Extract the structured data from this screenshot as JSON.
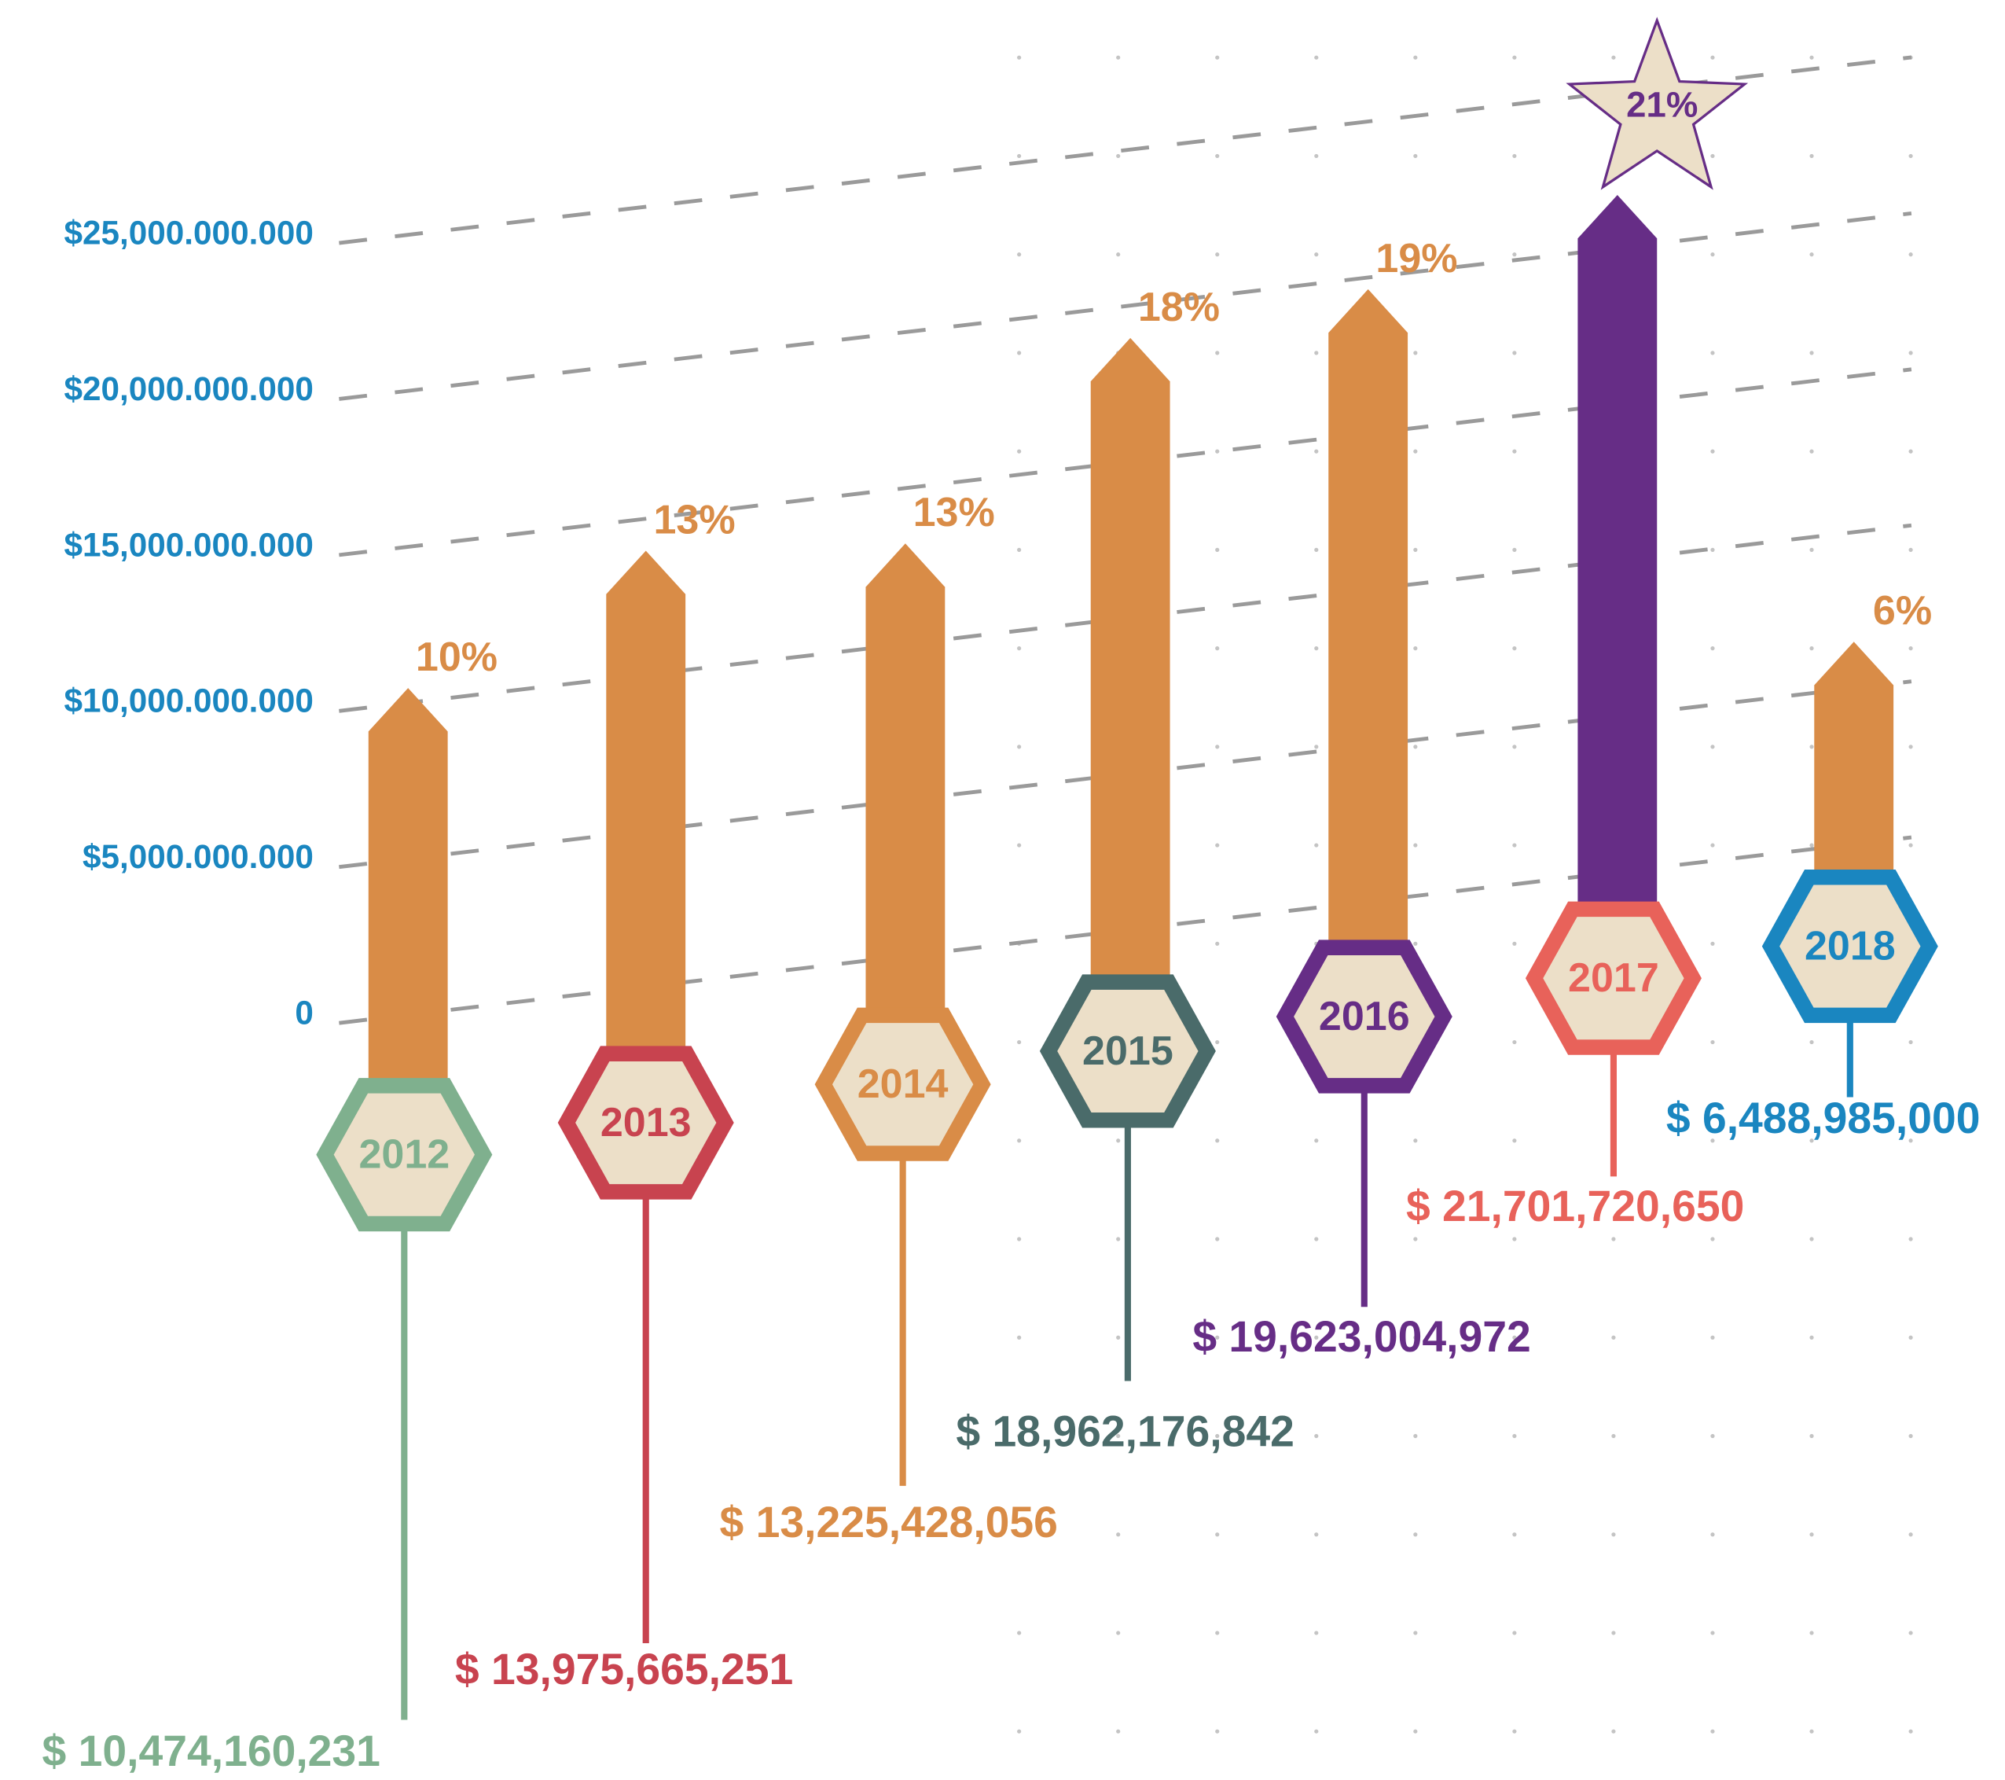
{
  "chart_data": {
    "type": "bar",
    "categories": [
      "2012",
      "2013",
      "2014",
      "2015",
      "2016",
      "2017",
      "2018"
    ],
    "values": [
      10474160231,
      13975665251,
      13225428056,
      18962176842,
      19623004972,
      21701720650,
      6488985000
    ],
    "value_labels": [
      "$ 10,474,160,231",
      "$ 13,975,665,251",
      "$ 13,225,428,056",
      "$ 18,962,176,842",
      "$ 19,623,004,972",
      "$ 21,701,720,650",
      "$ 6,488,985,000"
    ],
    "shares": {
      "values": [
        10,
        13,
        13,
        18,
        19,
        21,
        6
      ],
      "value_labels": [
        "10%",
        "13%",
        "13%",
        "18%",
        "19%",
        "21%",
        "6%"
      ]
    },
    "colors": [
      "#7fb08e",
      "#c8434f",
      "#d98c47",
      "#4a6b6a",
      "#662d86",
      "#e8625a",
      "#1a86c0"
    ],
    "bar_colors": [
      "#d98c47",
      "#d98c47",
      "#d98c47",
      "#d98c47",
      "#d98c47",
      "#662d86",
      "#d98c47"
    ],
    "share_color": "#d98c47",
    "axis_color": "#1a86c0",
    "ylim": [
      0,
      25000000000
    ],
    "yticks": [
      0,
      {
        "value": 5000000000,
        "label": "$5,000.000.000"
      },
      {
        "value": 10000000000,
        "label": "$10,000.000.000"
      },
      {
        "value": 15000000000,
        "label": "$15,000.000.000"
      },
      {
        "value": 20000000000,
        "label": "$20,000.000.000"
      },
      {
        "value": 25000000000,
        "label": "$25,000.000.000"
      }
    ],
    "grid": true
  }
}
